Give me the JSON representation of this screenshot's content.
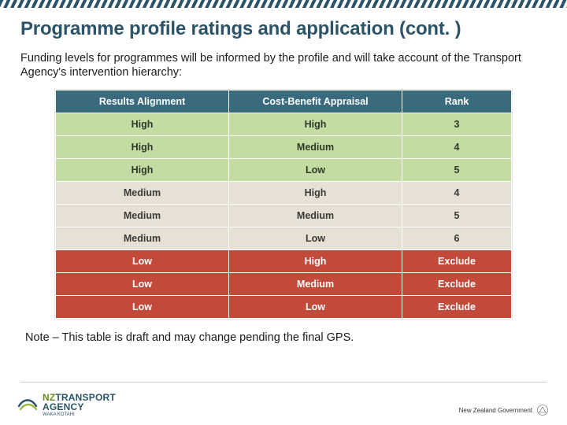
{
  "title": "Programme profile ratings and application (cont. )",
  "lead": "Funding levels for programmes will be informed by the profile and will take account of the Transport Agency's intervention hierarchy:",
  "note": "Note – This table is draft and may change pending the final GPS.",
  "table": {
    "headers": [
      "Results Alignment",
      "Cost-Benefit Appraisal",
      "Rank"
    ],
    "header_bg": "#3a6a7e",
    "header_fg": "#ffffff",
    "col_widths_pct": [
      38,
      38,
      24
    ],
    "row_colors": {
      "high": {
        "bg": "#c3dca1",
        "fg": "#2f3a2a"
      },
      "medium": {
        "bg": "#e6e1d4",
        "fg": "#3a3a36"
      },
      "low": {
        "bg": "#c14a3a",
        "fg": "#ffffff"
      }
    },
    "rows": [
      {
        "tier": "high",
        "cells": [
          "High",
          "High",
          "3"
        ]
      },
      {
        "tier": "high",
        "cells": [
          "High",
          "Medium",
          "4"
        ]
      },
      {
        "tier": "high",
        "cells": [
          "High",
          "Low",
          "5"
        ]
      },
      {
        "tier": "medium",
        "cells": [
          "Medium",
          "High",
          "4"
        ]
      },
      {
        "tier": "medium",
        "cells": [
          "Medium",
          "Medium",
          "5"
        ]
      },
      {
        "tier": "medium",
        "cells": [
          "Medium",
          "Low",
          "6"
        ]
      },
      {
        "tier": "low",
        "cells": [
          "Low",
          "High",
          "Exclude"
        ]
      },
      {
        "tier": "low",
        "cells": [
          "Low",
          "Medium",
          "Exclude"
        ]
      },
      {
        "tier": "low",
        "cells": [
          "Low",
          "Low",
          "Exclude"
        ]
      }
    ]
  },
  "footer": {
    "logo_line1_pre": "NZ",
    "logo_line1_main": "TRANSPORT",
    "logo_line2": "AGENCY",
    "logo_sub": "WAKA KOTAHI",
    "gov_label": "New Zealand Government"
  }
}
